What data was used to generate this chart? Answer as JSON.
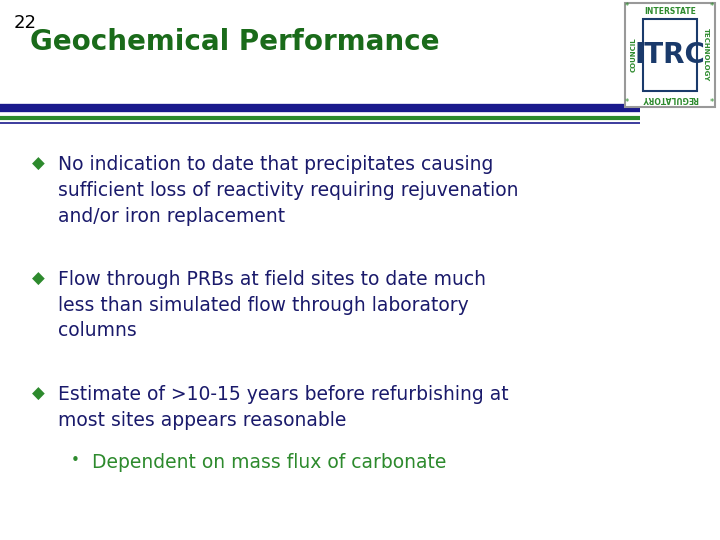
{
  "slide_number": "22",
  "title": "Geochemical Performance",
  "title_color": "#1a6b1a",
  "title_fontsize": 20,
  "slide_number_color": "#000000",
  "slide_number_fontsize": 13,
  "background_color": "#ffffff",
  "line1_color": "#1a1a8c",
  "line2_color": "#2d8a2d",
  "bullet_color": "#2d8a2d",
  "text_color": "#1a1a6b",
  "text_fontsize": 13.5,
  "sub_text_fontsize": 13.5,
  "sub_bullet_color": "#2d8a2d",
  "bullets": [
    "No indication to date that precipitates causing\nsufficient loss of reactivity requiring rejuvenation\nand/or iron replacement",
    "Flow through PRBs at field sites to date much\nless than simulated flow through laboratory\ncolumns",
    "Estimate of >10-15 years before refurbishing at\nmost sites appears reasonable"
  ],
  "sub_bullet_text": "Dependent on mass flux of carbonate",
  "logo_border_color": "#999999",
  "logo_text_color": "#1a3a6b",
  "logo_label_color": "#2d8a2d"
}
